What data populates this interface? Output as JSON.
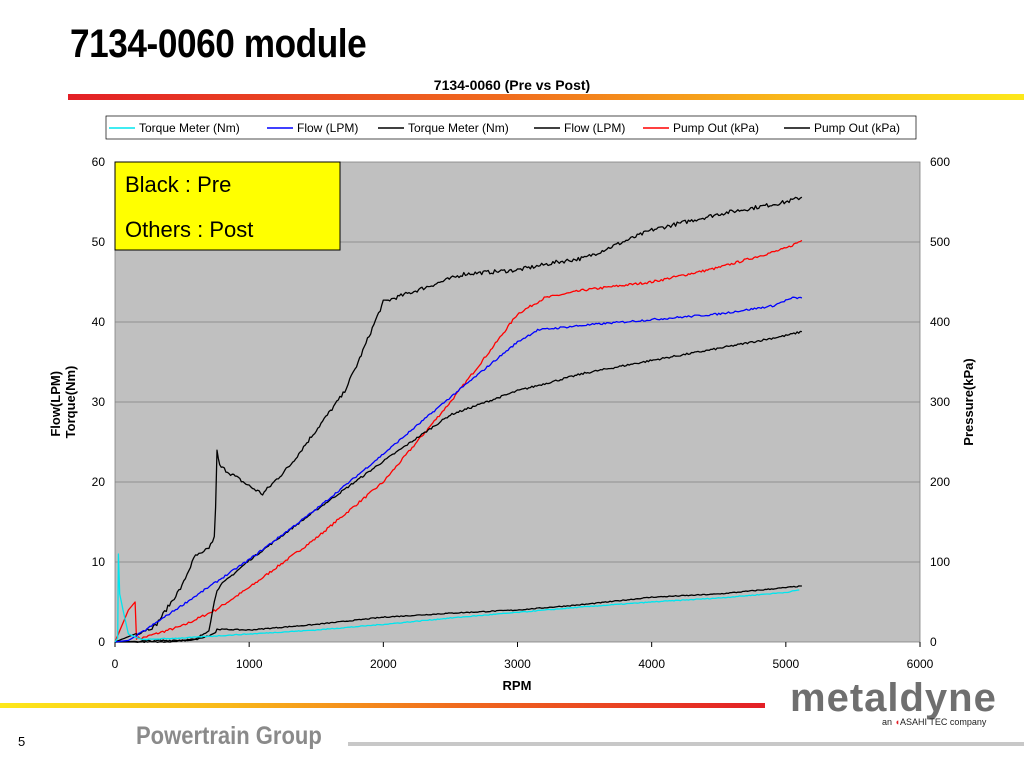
{
  "slide": {
    "title": "7134-0060 module",
    "page_number": "5",
    "footer": "Powertrain Group",
    "logo": {
      "name": "metaldyne",
      "tagline_prefix": "an",
      "tagline_brand": "ASAHI TEC",
      "tagline_suffix": "company"
    }
  },
  "colors": {
    "cyan": "#00e5ee",
    "blue": "#0000ff",
    "black": "#000000",
    "red": "#ff0000",
    "plot_bg": "#c0c0c0",
    "note_bg": "#ffff00"
  },
  "chart_data": {
    "type": "line",
    "title": "7134-0060 (Pre vs Post)",
    "xlabel": "RPM",
    "ylabel": "Flow(LPM)\nTorque(Nm)",
    "y2label": "Pressure(kPa)",
    "xlim": [
      0,
      6000
    ],
    "ylim": [
      0,
      60
    ],
    "y2lim": [
      0,
      600
    ],
    "xticks": [
      0,
      1000,
      2000,
      3000,
      4000,
      5000,
      6000
    ],
    "yticks": [
      0,
      10,
      20,
      30,
      40,
      50,
      60
    ],
    "y2ticks": [
      0,
      100,
      200,
      300,
      400,
      500,
      600
    ],
    "grid": "horizontal",
    "legend_position": "top",
    "annotation": {
      "lines": [
        "Black : Pre",
        "Others : Post"
      ]
    },
    "series": [
      {
        "name": "Torque Meter (Nm)",
        "color": "#00e5ee",
        "axis": "left",
        "noise": 0.05,
        "x": [
          0,
          20,
          25,
          35,
          60,
          100,
          200,
          500,
          1000,
          1500,
          2000,
          2500,
          3000,
          3500,
          4000,
          4500,
          5000,
          5100
        ],
        "y": [
          0,
          0.5,
          11,
          6,
          4,
          1,
          0.3,
          0.5,
          1,
          1.5,
          2.2,
          3,
          3.7,
          4.4,
          5,
          5.5,
          6.2,
          6.5
        ]
      },
      {
        "name": "Flow (LPM)",
        "color": "#0000ff",
        "axis": "left",
        "noise": 0.12,
        "x": [
          0,
          100,
          200,
          500,
          1000,
          1500,
          2000,
          2500,
          3000,
          3150,
          3500,
          4000,
          4500,
          4900,
          5000,
          5050,
          5120
        ],
        "y": [
          0,
          0.2,
          1.2,
          4.6,
          10.3,
          16.6,
          23.5,
          30.6,
          37.5,
          39,
          39.6,
          40.3,
          41,
          42,
          42.7,
          43,
          43
        ]
      },
      {
        "name": "Torque Meter (Nm)",
        "color": "#000000",
        "axis": "left",
        "noise": 0.06,
        "x": [
          0,
          400,
          600,
          700,
          750,
          760,
          1000,
          1500,
          2000,
          2500,
          3000,
          3500,
          4000,
          4500,
          5000,
          5120
        ],
        "y": [
          0,
          0,
          0.3,
          0.8,
          1.2,
          1.6,
          1.5,
          2.2,
          3.1,
          3.6,
          4,
          4.7,
          5.6,
          6,
          6.8,
          7
        ]
      },
      {
        "name": "Flow (LPM)",
        "color": "#000000",
        "axis": "left",
        "noise": 0.12,
        "x": [
          0,
          600,
          700,
          740,
          760,
          800,
          1000,
          1500,
          2000,
          2500,
          3000,
          3500,
          4000,
          4500,
          5000,
          5120
        ],
        "y": [
          0,
          0.3,
          1.5,
          5,
          6.5,
          7.3,
          10.2,
          16.5,
          22.6,
          28.4,
          31.4,
          33.6,
          35.2,
          36.7,
          38.3,
          38.8
        ]
      },
      {
        "name": "Pump Out (kPa)",
        "color": "#ff0000",
        "axis": "right",
        "noise": 1.5,
        "x": [
          0,
          100,
          150,
          160,
          200,
          500,
          750,
          1000,
          1500,
          2000,
          2500,
          2800,
          3000,
          3200,
          3500,
          4000,
          4500,
          5000,
          5120
        ],
        "y": [
          0,
          40,
          50,
          5,
          5,
          20,
          40,
          68,
          130,
          200,
          300,
          365,
          410,
          430,
          440,
          450,
          468,
          492,
          502
        ]
      },
      {
        "name": "Pump Out (kPa)",
        "color": "#000000",
        "axis": "right",
        "noise": 2.5,
        "x": [
          0,
          300,
          500,
          550,
          600,
          650,
          700,
          740,
          750,
          760,
          780,
          850,
          1000,
          1100,
          1300,
          1500,
          1700,
          1800,
          2000,
          2600,
          3000,
          3300,
          3500,
          4000,
          4500,
          5000,
          5120
        ],
        "y": [
          0,
          20,
          70,
          90,
          108,
          110,
          118,
          130,
          170,
          238,
          220,
          212,
          195,
          185,
          220,
          265,
          310,
          345,
          425,
          460,
          465,
          475,
          480,
          515,
          535,
          550,
          556
        ]
      }
    ]
  }
}
